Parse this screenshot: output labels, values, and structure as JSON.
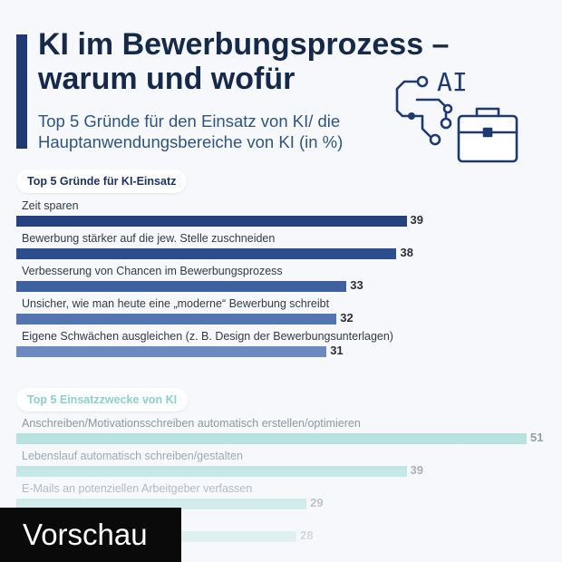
{
  "header": {
    "title": "KI im Bewerbungsprozess – warum und wofür",
    "subtitle": "Top 5 Gründe für den Einsatz von KI/ die Hauptanwendungsbereiche von KI (in %)",
    "illustration_text": "AI"
  },
  "preview_label": "Vorschau",
  "colors": {
    "dark_blue": "#1f3a70",
    "section1_bars": [
      "#24427e",
      "#2b4e8e",
      "#3d619f",
      "#5376b0",
      "#6b8bc0"
    ],
    "teal_light": "#b2e1dd",
    "teal_label": "#8ccfcc"
  },
  "chart_data": [
    {
      "type": "bar",
      "orientation": "horizontal",
      "title": "Top 5 Gründe für KI-Einsatz",
      "categories": [
        "Zeit sparen",
        "Bewerbung stärker auf die jew. Stelle zuschneiden",
        "Verbesserung von Chancen im Bewerbungsprozess",
        "Unsicher, wie man heute eine „moderne“ Bewerbung schreibt",
        "Eigene Schwächen ausgleichen (z. B. Design der Bewerbungsunterlagen)"
      ],
      "values": [
        39,
        38,
        33,
        32,
        31
      ],
      "unit": "%",
      "xlim": [
        0,
        51
      ]
    },
    {
      "type": "bar",
      "orientation": "horizontal",
      "title": "Top 5 Einsatzzwecke von KI",
      "categories": [
        "Anschreiben/Motivationsschreiben automatisch erstellen/optimieren",
        "Lebenslauf automatisch schreiben/gestalten",
        "E-Mails an potenziellen Arbeitgeber verfassen",
        ""
      ],
      "values": [
        51,
        39,
        29,
        28
      ],
      "unit": "%",
      "xlim": [
        0,
        51
      ]
    }
  ]
}
